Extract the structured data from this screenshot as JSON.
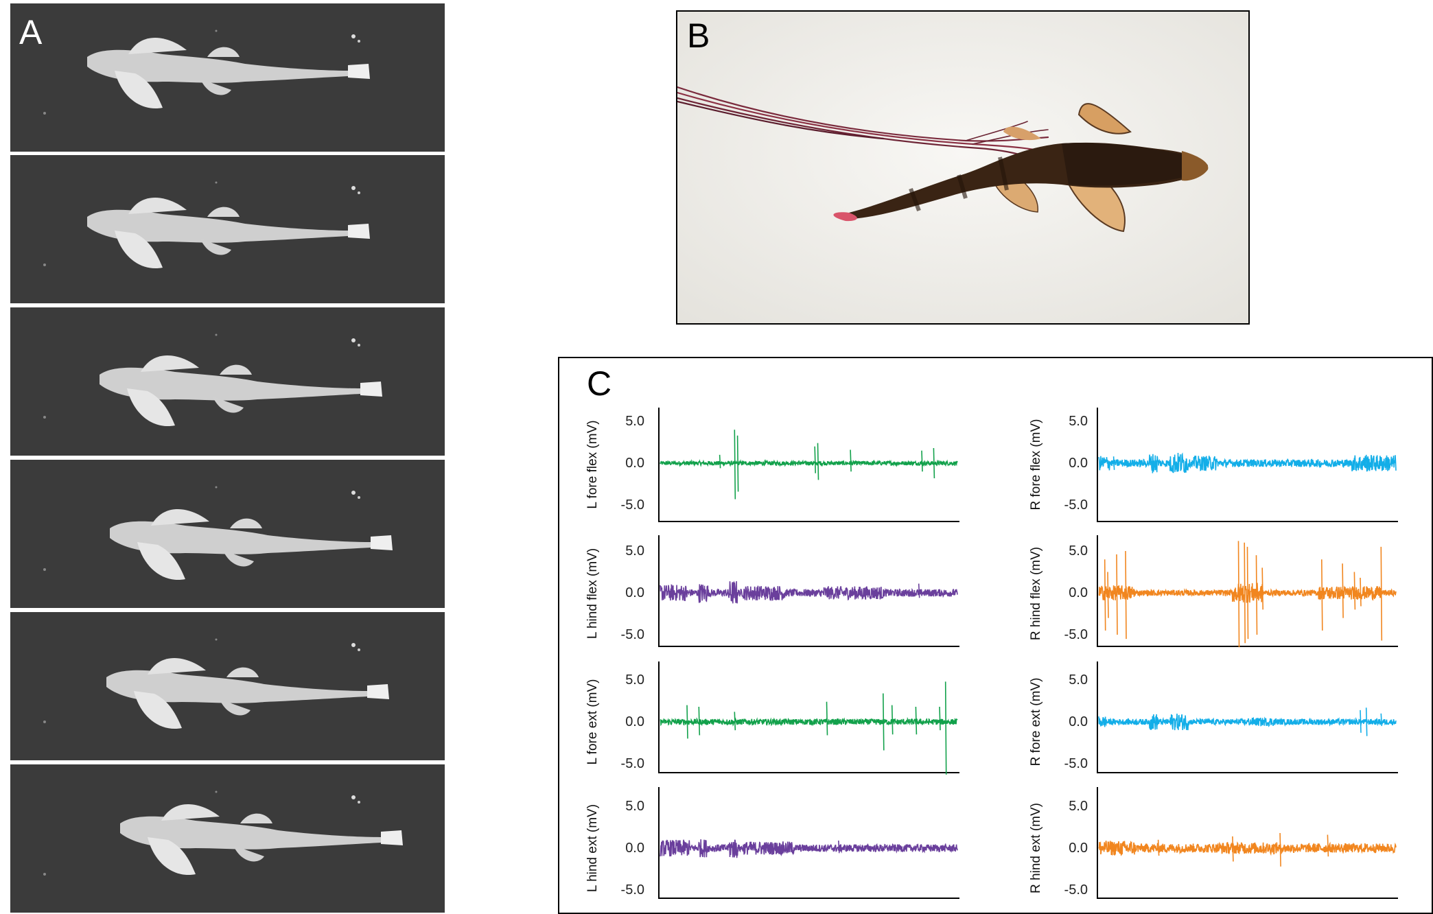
{
  "panels": {
    "a": {
      "letter": "A"
    },
    "b": {
      "letter": "B"
    },
    "c": {
      "letter": "C"
    }
  },
  "colors": {
    "green": "#12a14b",
    "purple": "#6a3f9c",
    "blue": "#13aee8",
    "orange": "#f1861f"
  },
  "chart_data": {
    "type": "line",
    "y_ticks": [
      "5.0",
      "0.0",
      "-5.0"
    ],
    "ylim": [
      -6.5,
      6.5
    ],
    "series": [
      {
        "label": "L fore flex (mV)",
        "color": "green",
        "column": "left"
      },
      {
        "label": "L hind flex (mV)",
        "color": "purple",
        "column": "left"
      },
      {
        "label": "L fore ext (mV)",
        "color": "green",
        "column": "left"
      },
      {
        "label": "L hind ext (mV)",
        "color": "purple",
        "column": "left"
      },
      {
        "label": "R fore flex (mV)",
        "color": "blue",
        "column": "right"
      },
      {
        "label": "R hind flex (mV)",
        "color": "orange",
        "column": "right"
      },
      {
        "label": "R fore ext (mV)",
        "color": "blue",
        "column": "right"
      },
      {
        "label": "R hind ext (mV)",
        "color": "orange",
        "column": "right"
      }
    ]
  }
}
